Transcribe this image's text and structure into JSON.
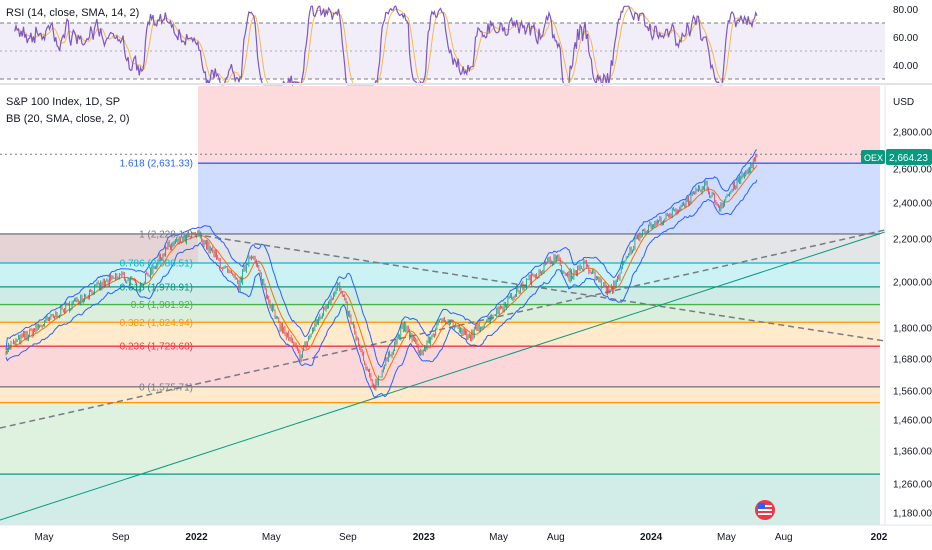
{
  "chart_data": {
    "type": "line",
    "rsi_panel": {
      "legend": "RSI (14, close, SMA, 14, 2)",
      "y_ticks": [
        "80.00",
        "60.00",
        "40.00"
      ],
      "levels": [
        70,
        50,
        30
      ]
    },
    "main_panel": {
      "title": "S&P 100 Index, 1D, SP",
      "indicator": "BB (20, SMA, close, 2, 0)",
      "currency": "USD",
      "y_ticks": [
        "2,800.00",
        "2,600.00",
        "2,400.00",
        "2,200.00",
        "2,000.00",
        "1,800.00",
        "1,680.00",
        "1,560.00",
        "1,460.00",
        "1,360.00",
        "1,260.00",
        "1,180.00"
      ],
      "y_tick_values": [
        2800,
        2600,
        2400,
        2200,
        2000,
        1800,
        1680,
        1560,
        1460,
        1360,
        1260,
        1180
      ],
      "x_ticks": [
        "May",
        "Sep",
        "2022",
        "May",
        "Sep",
        "2023",
        "May",
        "Aug",
        "2024",
        "May",
        "Aug",
        "202"
      ],
      "x_tick_dates": [
        "2021-05-01",
        "2021-09-01",
        "2022-01-01",
        "2022-05-01",
        "2022-09-01",
        "2023-01-01",
        "2023-05-01",
        "2023-08-01",
        "2024-01-01",
        "2024-05-01",
        "2024-08-01",
        "2025-01-01"
      ],
      "symbol_badge": "OEX",
      "last_price": "2,664.23",
      "fibonacci": [
        {
          "ratio": "1.618",
          "value": 2631.33,
          "label": "1.618 (2,631.33)",
          "color": "#2962ff"
        },
        {
          "ratio": "1",
          "value": 2228.13,
          "label": "1 (2,228.13)",
          "color": "#787b86"
        },
        {
          "ratio": "0.786",
          "value": 2088.51,
          "label": "0.786 (2,088.51)",
          "color": "#00bcd4"
        },
        {
          "ratio": "0.618",
          "value": 1978.91,
          "label": "0.618 (1,978.91)",
          "color": "#089981"
        },
        {
          "ratio": "0.5",
          "value": 1901.92,
          "label": "0.5 (1,901.92)",
          "color": "#4caf50"
        },
        {
          "ratio": "0.382",
          "value": 1824.94,
          "label": "0.382 (1,824.94)",
          "color": "#ff9800"
        },
        {
          "ratio": "0.236",
          "value": 1729.68,
          "label": "0.236 (1,729.68)",
          "color": "#f23645"
        },
        {
          "ratio": "0",
          "value": 1575.71,
          "label": "0 (1,575.71)",
          "color": "#787b86"
        }
      ],
      "price_series": [
        {
          "date": "2021-03-01",
          "value": 1720
        },
        {
          "date": "2021-04-15",
          "value": 1790
        },
        {
          "date": "2021-06-01",
          "value": 1880
        },
        {
          "date": "2021-07-15",
          "value": 1960
        },
        {
          "date": "2021-09-01",
          "value": 2030
        },
        {
          "date": "2021-10-01",
          "value": 1980
        },
        {
          "date": "2021-11-15",
          "value": 2160
        },
        {
          "date": "2022-01-03",
          "value": 2228
        },
        {
          "date": "2022-02-15",
          "value": 2060
        },
        {
          "date": "2022-03-10",
          "value": 1985
        },
        {
          "date": "2022-03-29",
          "value": 2140
        },
        {
          "date": "2022-05-10",
          "value": 1830
        },
        {
          "date": "2022-06-16",
          "value": 1690
        },
        {
          "date": "2022-08-16",
          "value": 1990
        },
        {
          "date": "2022-09-30",
          "value": 1640
        },
        {
          "date": "2022-10-13",
          "value": 1576
        },
        {
          "date": "2022-11-30",
          "value": 1810
        },
        {
          "date": "2022-12-28",
          "value": 1700
        },
        {
          "date": "2023-02-02",
          "value": 1850
        },
        {
          "date": "2023-03-13",
          "value": 1760
        },
        {
          "date": "2023-05-01",
          "value": 1880
        },
        {
          "date": "2023-07-31",
          "value": 2120
        },
        {
          "date": "2023-08-18",
          "value": 2020
        },
        {
          "date": "2023-09-15",
          "value": 2080
        },
        {
          "date": "2023-10-27",
          "value": 1950
        },
        {
          "date": "2023-12-15",
          "value": 2240
        },
        {
          "date": "2024-01-31",
          "value": 2330
        },
        {
          "date": "2024-03-28",
          "value": 2500
        },
        {
          "date": "2024-04-19",
          "value": 2380
        },
        {
          "date": "2024-05-21",
          "value": 2530
        },
        {
          "date": "2024-06-20",
          "value": 2664
        }
      ]
    }
  }
}
